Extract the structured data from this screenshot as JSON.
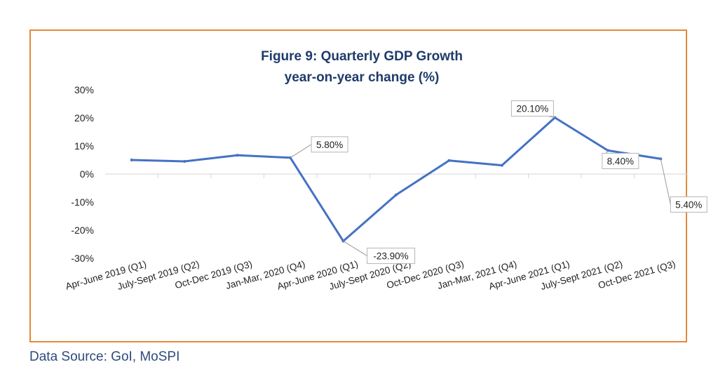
{
  "chart_data": {
    "type": "line",
    "title_lines": [
      "Figure 9: Quarterly GDP Growth",
      "year-on-year change (%)"
    ],
    "categories": [
      "Apr-June 2019 (Q1)",
      "July-Sept 2019 (Q2)",
      "Oct-Dec 2019 (Q3)",
      "Jan-Mar, 2020 (Q4)",
      "Apr-June 2020 (Q1)",
      "July-Sept 2020 (Q2)",
      "Oct-Dec 2020 (Q3)",
      "Jan-Mar, 2021 (Q4)",
      "Apr-June 2021 (Q1)",
      "July-Sept 2021 (Q2)",
      "Oct-Dec 2021 (Q3)"
    ],
    "series": [
      {
        "values": [
          5.0,
          4.5,
          6.7,
          5.8,
          -23.9,
          -7.4,
          4.8,
          3.1,
          20.1,
          8.4,
          5.4
        ]
      }
    ],
    "ylim": [
      -30,
      30
    ],
    "yticks": [
      -30,
      -20,
      -10,
      0,
      10,
      20,
      30
    ],
    "ytick_labels": [
      "-30%",
      "-20%",
      "-10%",
      "0%",
      "10%",
      "20%",
      "30%"
    ],
    "data_labels": [
      {
        "index": 3,
        "text": "5.80%"
      },
      {
        "index": 4,
        "text": "-23.90%"
      },
      {
        "index": 8,
        "text": "20.10%"
      },
      {
        "index": 9,
        "text": "8.40%"
      },
      {
        "index": 10,
        "text": "5.40%"
      }
    ],
    "line_color": "#4472c4",
    "frame_color": "#e5893a",
    "title_color": "#1f3b6b"
  },
  "footer": {
    "source": "Data Source: GoI, MoSPI"
  }
}
